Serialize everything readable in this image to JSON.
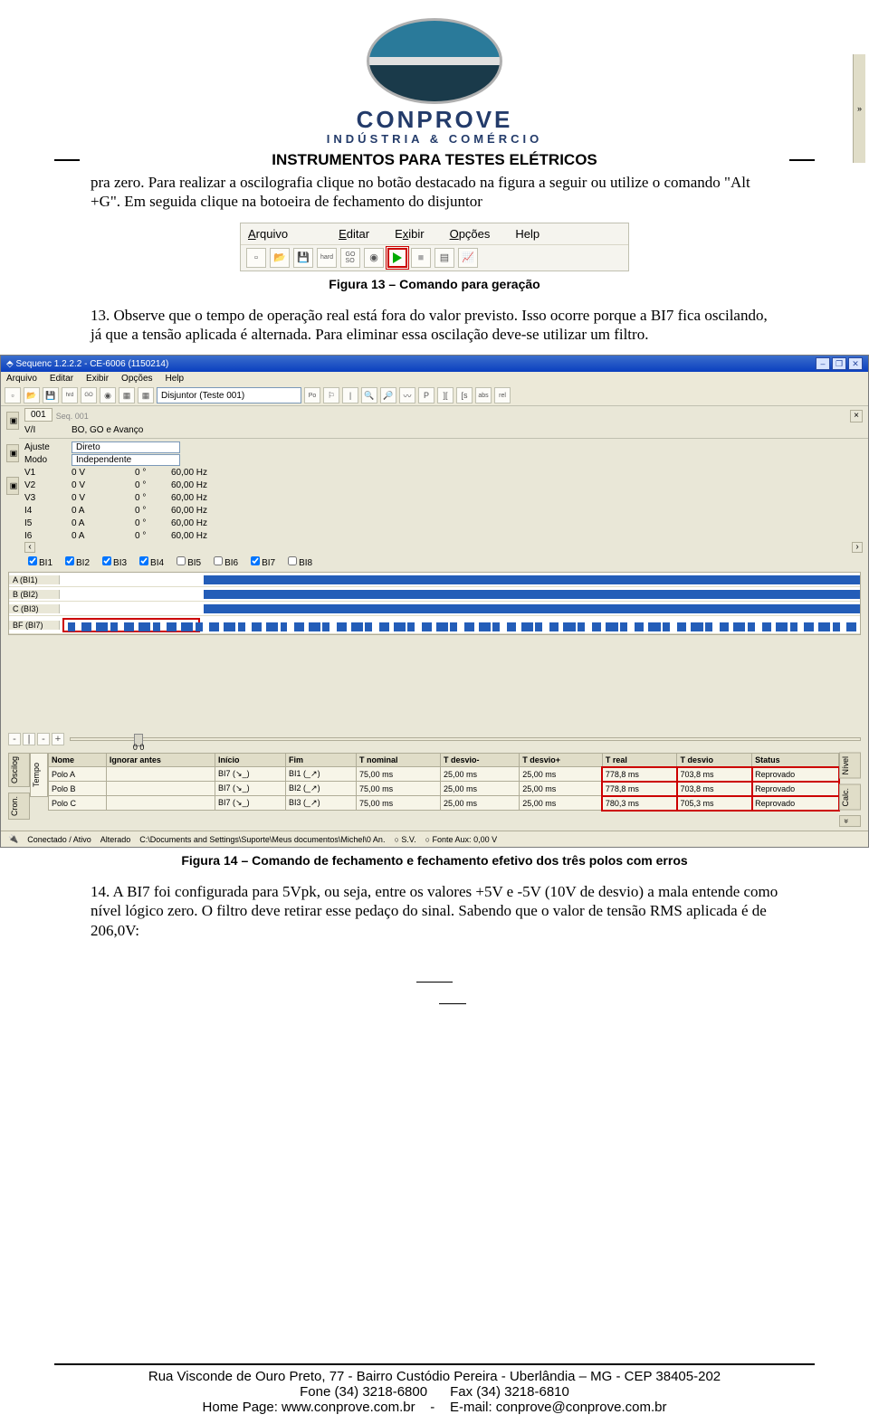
{
  "logo": {
    "name": "CONPROVE",
    "sub": "INDÚSTRIA & COMÉRCIO"
  },
  "header_banner": "INSTRUMENTOS PARA TESTES ELÉTRICOS",
  "para1": "pra zero. Para realizar a oscilografia clique no botão destacado na figura a seguir ou utilize o comando \"Alt +G\". Em seguida clique na botoeira de fechamento do disjuntor",
  "menubar": {
    "items": [
      "Arquivo",
      "Editar",
      "Exibir",
      "Opções",
      "Help"
    ]
  },
  "fig13": "Figura 13 – Comando para geração",
  "para2": "13. Observe que o tempo de operação real está fora do valor previsto. Isso ocorre porque a BI7 fica oscilando, já que a tensão aplicada é alternada. Para eliminar essa oscilação deve-se utilizar um filtro.",
  "app": {
    "title": "Sequenc 1.2.2.2 - CE-6006 (1150214)",
    "menu": [
      "Arquivo",
      "Editar",
      "Exibir",
      "Opções",
      "Help"
    ],
    "combo": "Disjuntor (Teste 001)",
    "tab001": "001",
    "tab001_name": "Seq. 001",
    "rowVU": {
      "label": "V/I",
      "val": "BO, GO e Avanço"
    },
    "rowAjuste": {
      "label": "Ajuste",
      "val": "Direto"
    },
    "rowModo": {
      "label": "Modo",
      "val": "Independente"
    },
    "channels": [
      {
        "n": "V1",
        "v": "0 V",
        "g": "0 °",
        "h": "60,00 Hz"
      },
      {
        "n": "V2",
        "v": "0 V",
        "g": "0 °",
        "h": "60,00 Hz"
      },
      {
        "n": "V3",
        "v": "0 V",
        "g": "0 °",
        "h": "60,00 Hz"
      },
      {
        "n": "I4",
        "v": "0 A",
        "g": "0 °",
        "h": "60,00 Hz"
      },
      {
        "n": "I5",
        "v": "0 A",
        "g": "0 °",
        "h": "60,00 Hz"
      },
      {
        "n": "I6",
        "v": "0 A",
        "g": "0 °",
        "h": "60,00 Hz"
      }
    ],
    "bis": [
      "BI1",
      "BI2",
      "BI3",
      "BI4",
      "BI5",
      "BI6",
      "BI7",
      "BI8"
    ],
    "osc_rows": [
      "A (BI1)",
      "B (BI2)",
      "C (BI3)",
      "BF (BI7)"
    ],
    "slider_vals": "0   0",
    "results": {
      "cols": [
        "Nome",
        "Ignorar antes",
        "Início",
        "Fim",
        "T nominal",
        "T desvio-",
        "T desvio+",
        "T real",
        "T desvio",
        "Status"
      ],
      "rows": [
        [
          "Polo A",
          "",
          "BI7 (↘_)",
          "BI1 (_↗)",
          "75,00 ms",
          "25,00 ms",
          "25,00 ms",
          "778,8 ms",
          "703,8 ms",
          "Reprovado"
        ],
        [
          "Polo B",
          "",
          "BI7 (↘_)",
          "BI2 (_↗)",
          "75,00 ms",
          "25,00 ms",
          "25,00 ms",
          "778,8 ms",
          "703,8 ms",
          "Reprovado"
        ],
        [
          "Polo C",
          "",
          "BI7 (↘_)",
          "BI3 (_↗)",
          "75,00 ms",
          "25,00 ms",
          "25,00 ms",
          "780,3 ms",
          "705,3 ms",
          "Reprovado"
        ]
      ]
    },
    "left_tabs": [
      "Oscilog",
      "Cron."
    ],
    "res_left_tabs": [
      "Tempo"
    ],
    "res_right_tabs": [
      "Nível",
      "Calc.",
      "«"
    ],
    "status": {
      "conn": "Conectado / Ativo",
      "alt": "Alterado",
      "path": "C:\\Documents and Settings\\Suporte\\Meus documentos\\Michel\\0 An.",
      "sv": "S.V.",
      "fonte": "Fonte Aux:",
      "fonte_v": "0,00 V"
    }
  },
  "fig14": "Figura 14 – Comando de fechamento e fechamento efetivo dos três polos com erros",
  "para3": "14. A BI7 foi configurada para 5Vpk, ou seja, entre os valores +5V e -5V (10V de desvio) a mala entende como nível lógico zero. O filtro deve retirar esse pedaço do sinal. Sabendo que o valor de tensão RMS aplicada é de 206,0V:",
  "footer": {
    "l1": "Rua Visconde de Ouro Preto, 77 - Bairro Custódio Pereira - Uberlândia – MG - CEP 38405-202",
    "l2a": "Fone (34) 3218-6800",
    "l2b": "Fax (34) 3218-6810",
    "l3a": "Home Page: www.conprove.com.br",
    "l3b": "E-mail: conprove@conprove.com.br"
  },
  "colors": {
    "titlebar_top": "#3b6ecc",
    "titlebar_bot": "#0a3fbf",
    "beige": "#e9e7d7",
    "panel": "#ece9d8",
    "blue_bar": "#235db8",
    "red": "#c00",
    "green": "#0a0",
    "logo_text": "#233b6a"
  }
}
